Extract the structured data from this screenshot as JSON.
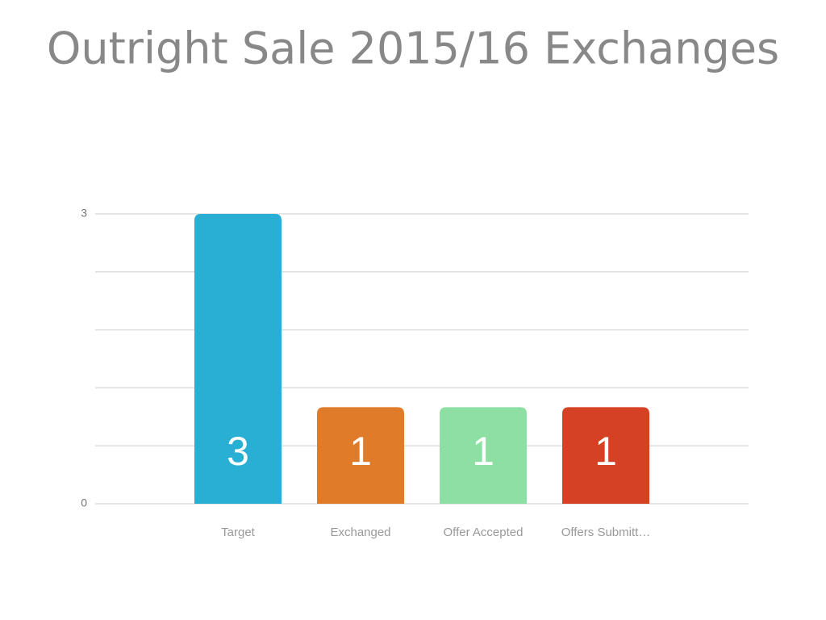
{
  "chart_data": {
    "type": "bar",
    "title": "Outright Sale 2015/16 Exchanges",
    "categories": [
      "Target",
      "Exchanged",
      "Offer Accepted",
      "Offers Submitt…"
    ],
    "values": [
      3,
      1,
      1,
      1
    ],
    "colors": [
      "#29afd4",
      "#e07b2a",
      "#8ddfa3",
      "#d54125"
    ],
    "ylim": [
      0,
      3
    ],
    "yticks": [
      0,
      3
    ],
    "minor_grid": [
      0.6,
      1.2,
      1.8,
      2.4
    ],
    "grid": true
  }
}
